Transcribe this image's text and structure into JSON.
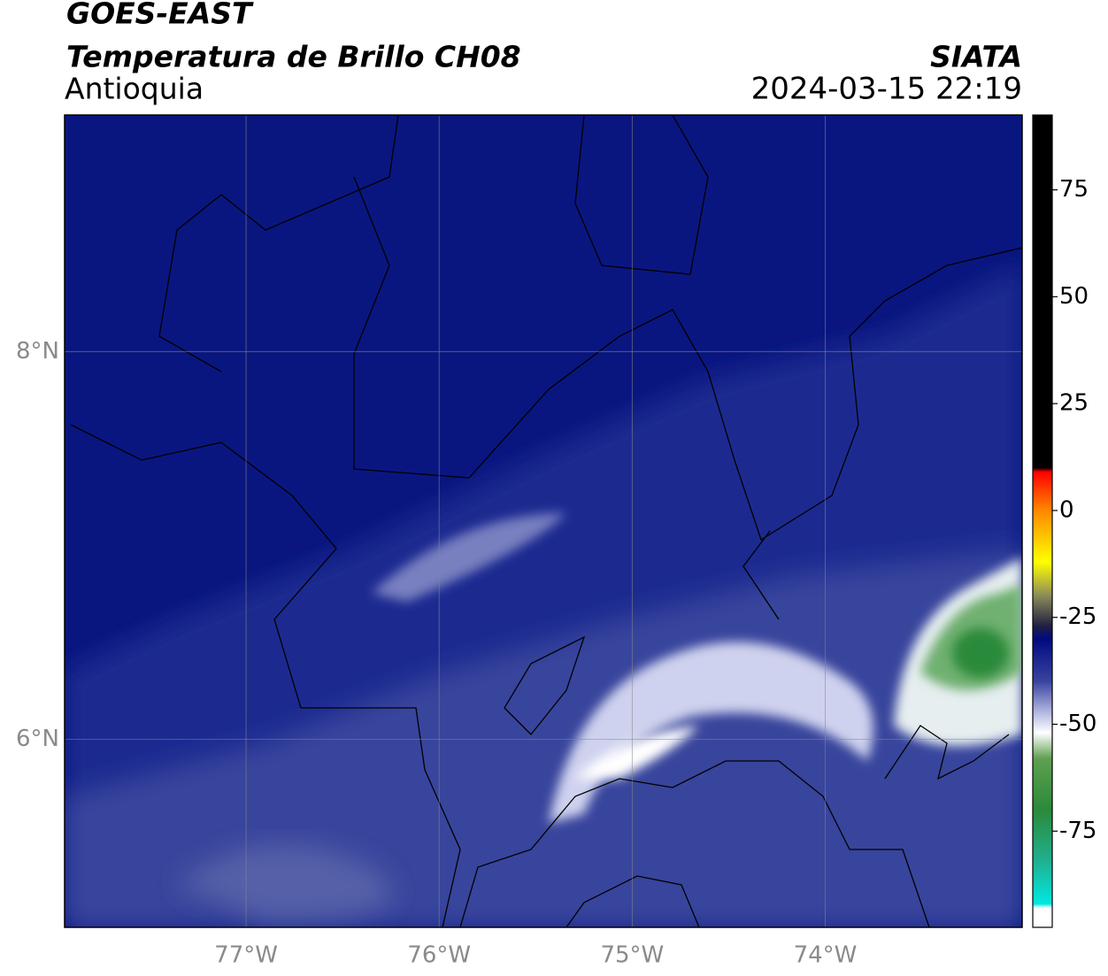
{
  "header": {
    "title": "GOES-EAST",
    "subtitle": "Temperatura de Brillo CH08",
    "region": "Antioquia",
    "agency": "SIATA",
    "datetime": "2024-03-15 22:19"
  },
  "map": {
    "lonlim": [
      -77.94,
      -72.98
    ],
    "latlim": [
      5.03,
      9.22
    ],
    "lonticks": [
      {
        "value": -77,
        "label": "77°W"
      },
      {
        "value": -76,
        "label": "76°W"
      },
      {
        "value": -75,
        "label": "75°W"
      },
      {
        "value": -74,
        "label": "74°W"
      }
    ],
    "latticks": [
      {
        "value": 8,
        "label": "8°N"
      },
      {
        "value": 6,
        "label": "6°N"
      }
    ]
  },
  "colorbar": {
    "lim": [
      -97.5,
      92.5
    ],
    "ticks": [
      75,
      50,
      25,
      0,
      -25,
      -50,
      -75
    ],
    "stops": [
      {
        "value": 92.5,
        "color": "#000000"
      },
      {
        "value": 10,
        "color": "#000000"
      },
      {
        "value": 9,
        "color": "#ff0000"
      },
      {
        "value": 0,
        "color": "#ff8800"
      },
      {
        "value": -12,
        "color": "#ffff00"
      },
      {
        "value": -20,
        "color": "#8a8a5a"
      },
      {
        "value": -27,
        "color": "#202040"
      },
      {
        "value": -30,
        "color": "#000a80"
      },
      {
        "value": -40,
        "color": "#3a44a0"
      },
      {
        "value": -47,
        "color": "#b0b4e0"
      },
      {
        "value": -52,
        "color": "#ffffff"
      },
      {
        "value": -58,
        "color": "#60a050"
      },
      {
        "value": -70,
        "color": "#2a8a3a"
      },
      {
        "value": -82,
        "color": "#20b090"
      },
      {
        "value": -92,
        "color": "#00e8e0"
      },
      {
        "value": -93,
        "color": "#ffffff"
      },
      {
        "value": -97.5,
        "color": "#ffffff"
      }
    ]
  }
}
